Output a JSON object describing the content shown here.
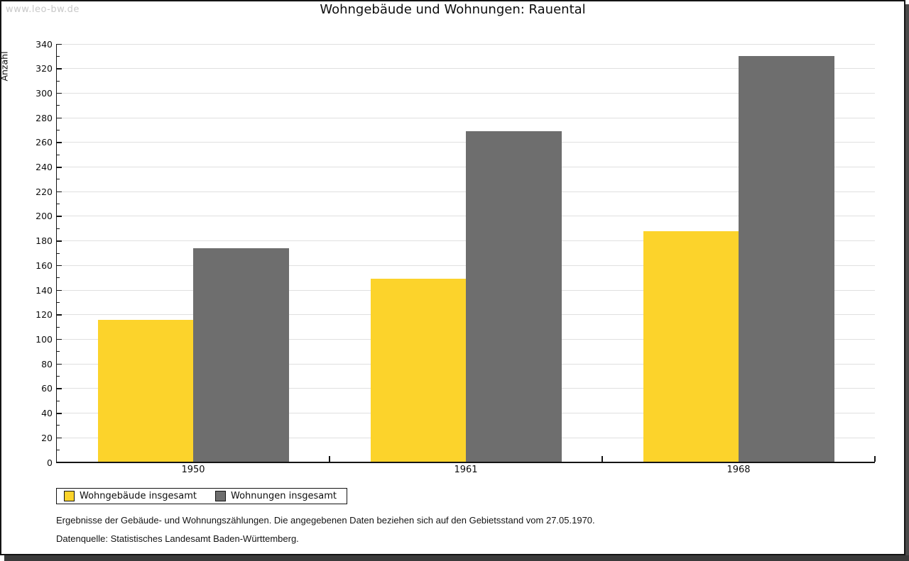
{
  "watermark": "www.leo-bw.de",
  "title": "Wohngebäude und Wohnungen: Rauental",
  "chart_data": {
    "type": "bar",
    "title": "Wohngebäude und Wohnungen: Rauental",
    "xlabel": "",
    "ylabel": "Anzahl",
    "categories": [
      "1950",
      "1961",
      "1968"
    ],
    "series": [
      {
        "name": "Wohngebäude insgesamt",
        "color": "#FCD32B",
        "values": [
          116,
          149,
          188
        ]
      },
      {
        "name": "Wohnungen insgesamt",
        "color": "#6E6E6E",
        "values": [
          174,
          269,
          330
        ]
      }
    ],
    "ylim": [
      0,
      340
    ],
    "ytick_step": 20,
    "minor_tick_step": 10,
    "grid": true,
    "gridline_color": "#E0E0E0",
    "legend_position": "bottom-left"
  },
  "footer": {
    "line1": "Ergebnisse der Gebäude- und Wohnungszählungen. Die angegebenen Daten beziehen sich auf den Gebietsstand vom 27.05.1970.",
    "line2": "Datenquelle: Statistisches Landesamt Baden-Württemberg."
  },
  "colors": {
    "accent_yellow": "#FCD32B",
    "bar_gray": "#6E6E6E",
    "gridline": "#E0E0E0",
    "watermark": "#C8C8C8",
    "frame": "#141414",
    "shadow": "#4A4A4A"
  }
}
